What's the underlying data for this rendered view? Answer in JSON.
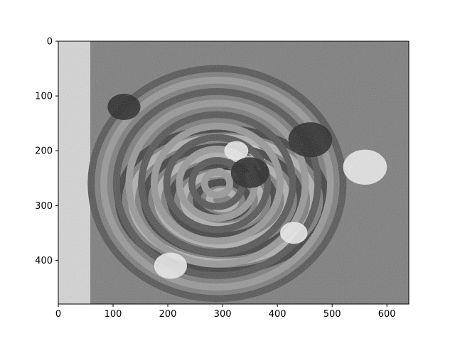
{
  "chart_data": {
    "type": "heatmap",
    "title": "",
    "xlabel": "",
    "ylabel": "",
    "xlim": [
      0,
      640
    ],
    "ylim": [
      480,
      0
    ],
    "xticks": [
      0,
      100,
      200,
      300,
      400,
      500,
      600
    ],
    "yticks": [
      0,
      100,
      200,
      300,
      400
    ],
    "colormap": "gray",
    "grid": false,
    "image_size": [
      640,
      480
    ],
    "content": "wrapped phase map (interferometric fringes), grayscale",
    "fringe_features": [
      {
        "kind": "central-fringes",
        "cx": 330,
        "cy": 215,
        "rx": 45,
        "ry": 30,
        "rings": 5
      },
      {
        "kind": "bowl-fringes",
        "cx": 300,
        "cy": 290,
        "rx": 190,
        "ry": 130,
        "rings": 8
      },
      {
        "kind": "outer-fringes",
        "cx": 290,
        "cy": 260,
        "rx": 230,
        "ry": 210,
        "rings": 10
      },
      {
        "kind": "bright-blob",
        "cx": 325,
        "cy": 200,
        "r": 22
      },
      {
        "kind": "bright-blob",
        "cx": 205,
        "cy": 410,
        "r": 30
      },
      {
        "kind": "bright-blob",
        "cx": 430,
        "cy": 350,
        "r": 25
      },
      {
        "kind": "bright-blob",
        "cx": 560,
        "cy": 230,
        "r": 40
      },
      {
        "kind": "dark-blob",
        "cx": 460,
        "cy": 180,
        "r": 40
      },
      {
        "kind": "dark-blob",
        "cx": 120,
        "cy": 120,
        "r": 30
      },
      {
        "kind": "dark-blob",
        "cx": 350,
        "cy": 240,
        "r": 35
      }
    ],
    "tick_color": "#000000",
    "frame_color": "#000000"
  }
}
